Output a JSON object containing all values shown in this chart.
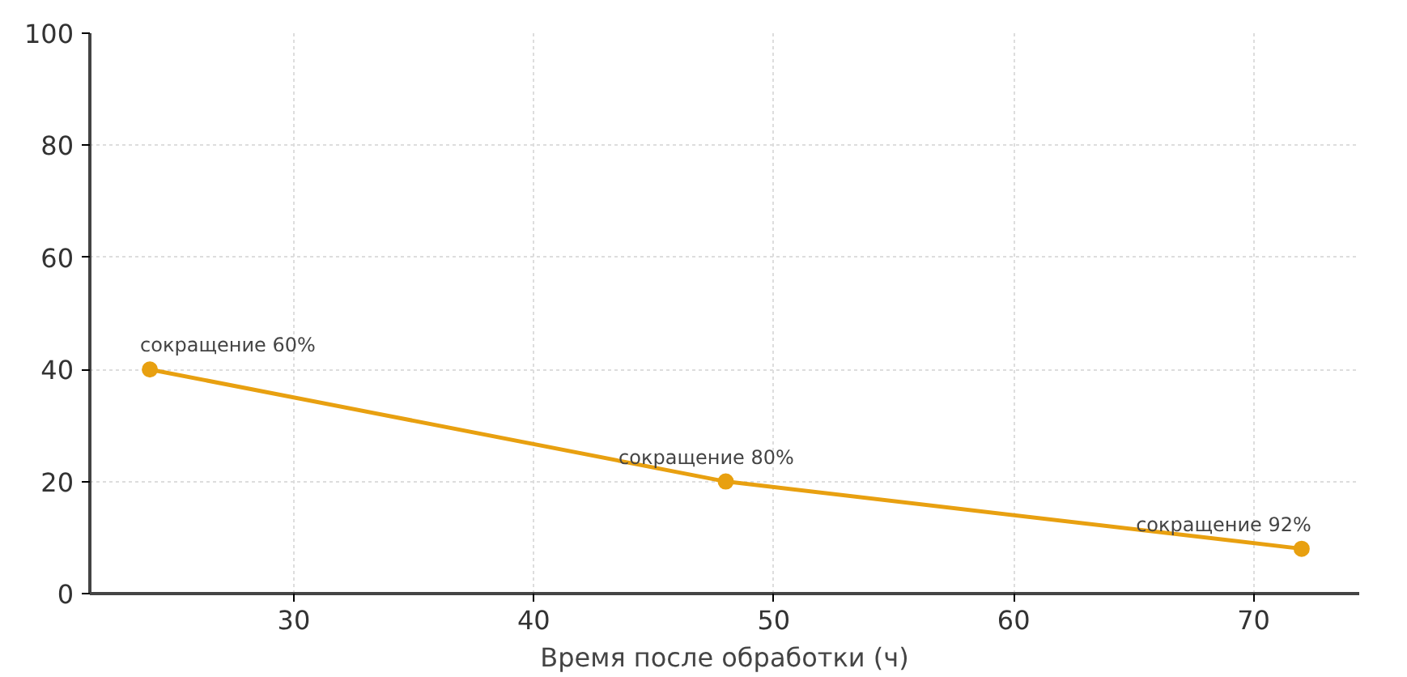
{
  "chart_data": {
    "type": "line",
    "xlabel": "Время после обработки (ч)",
    "x": [
      24,
      48,
      72
    ],
    "series": [
      {
        "color": "#e8a010",
        "values": [
          40,
          20,
          8
        ]
      }
    ],
    "xlim": [
      21.5,
      74.4
    ],
    "xticks": [
      30,
      40,
      50,
      60,
      70
    ],
    "ylim": [
      0,
      100
    ],
    "yticks": [
      0,
      20,
      40,
      60,
      80,
      100
    ],
    "grid": true,
    "marker": "circle",
    "line_style": "solid",
    "annotations": [
      {
        "text": "сокращение 60%",
        "x": 24,
        "y": 40
      },
      {
        "text": "сокращение 80%",
        "x": 48,
        "y": 20
      },
      {
        "text": "сокращение 92%",
        "x": 72,
        "y": 8
      }
    ]
  }
}
